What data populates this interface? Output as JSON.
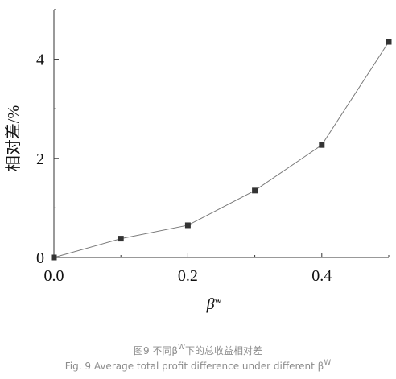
{
  "chart_data": {
    "type": "line",
    "title": "",
    "xlabel": "β",
    "xlabel_sup": "w",
    "ylabel": "相对差/%",
    "x": [
      0.0,
      0.1,
      0.2,
      0.3,
      0.4,
      0.5
    ],
    "series": [
      {
        "values": [
          0.0,
          0.38,
          0.65,
          1.35,
          2.27,
          4.35
        ]
      }
    ],
    "xlim": [
      0.0,
      0.5
    ],
    "ylim": [
      0.0,
      5.0
    ],
    "x_major_ticks": [
      0.0,
      0.2,
      0.4
    ],
    "x_tick_labels": [
      "0.0",
      "0.2",
      "0.4"
    ],
    "y_major_ticks": [
      0,
      2,
      4
    ],
    "y_tick_labels": [
      "0",
      "2",
      "4"
    ],
    "grid": false,
    "marker": "square",
    "line_color": "#7a7a7a",
    "marker_color": "#333333"
  },
  "caption": {
    "cn_pre": "图9 不同β",
    "cn_sup": "W",
    "cn_post": "下的总收益相对差",
    "en_pre": "Fig. 9 Average total profit difference under different β",
    "en_sup": "W"
  }
}
